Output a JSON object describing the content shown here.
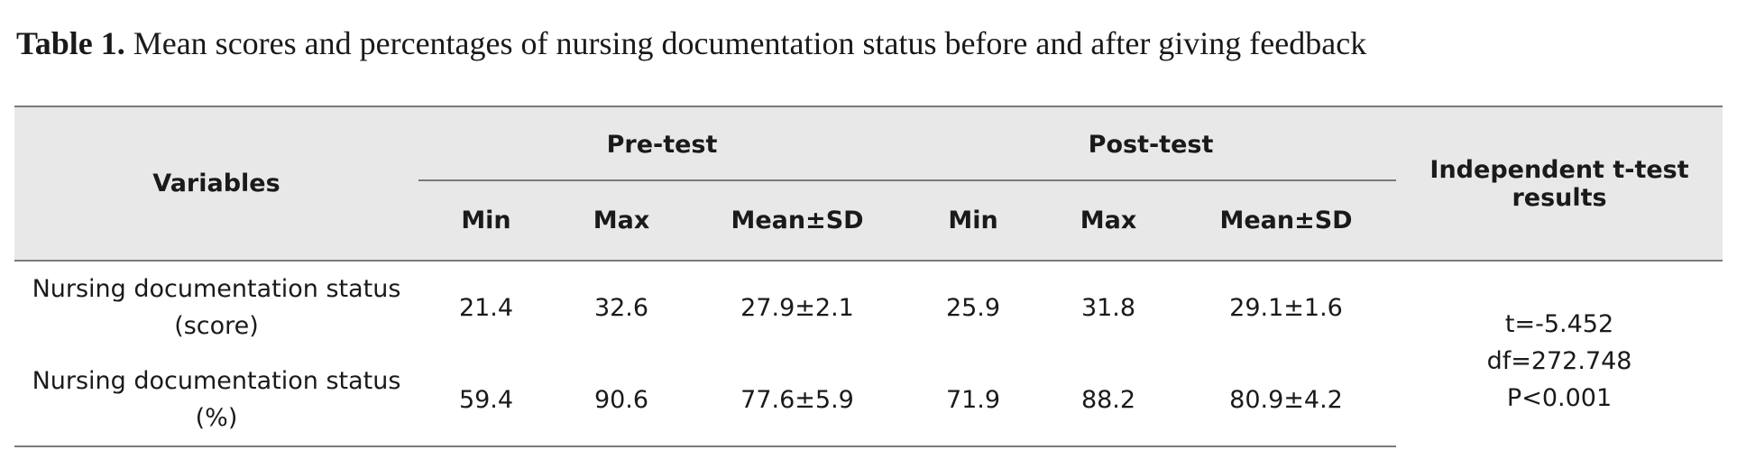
{
  "caption": {
    "label": "Table 1.",
    "text": "Mean scores and percentages of nursing documentation status before and after giving feedback"
  },
  "table": {
    "headers": {
      "variables": "Variables",
      "pre_test": "Pre-test",
      "post_test": "Post-test",
      "ttest_line1": "Independent t-test",
      "ttest_line2": "results",
      "sub": [
        "Min",
        "Max",
        "Mean±SD",
        "Min",
        "Max",
        "Mean±SD"
      ]
    },
    "rows": [
      {
        "variable_line1": "Nursing documentation status",
        "variable_line2": "(score)",
        "values": [
          "21.4",
          "32.6",
          "27.9±2.1",
          "25.9",
          "31.8",
          "29.1±1.6"
        ]
      },
      {
        "variable_line1": "Nursing documentation status",
        "variable_line2": "(%)",
        "values": [
          "59.4",
          "90.6",
          "77.6±5.9",
          "71.9",
          "88.2",
          "80.9±4.2"
        ]
      }
    ],
    "ttest_results": [
      "t=-5.452",
      "df=272.748",
      "P<0.001"
    ]
  }
}
